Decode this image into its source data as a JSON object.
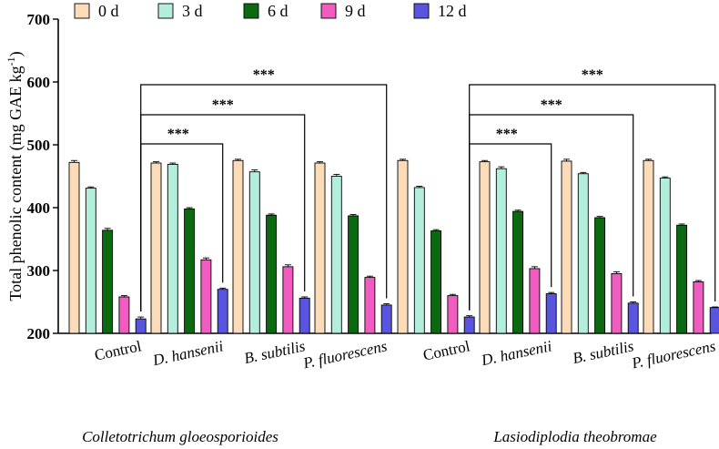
{
  "chart_data": {
    "type": "bar",
    "ylabel": "Total phenolic content (mg GAE kg",
    "ylabel_sup": "-1",
    "ylabel_close": ")",
    "ylim": [
      200,
      700
    ],
    "yticks": [
      200,
      300,
      400,
      500,
      600,
      700
    ],
    "series": [
      {
        "name": "0 d",
        "color": "#fcdcb8"
      },
      {
        "name": "3 d",
        "color": "#b3eedc"
      },
      {
        "name": "6 d",
        "color": "#0b6a10"
      },
      {
        "name": "9 d",
        "color": "#f05cbf"
      },
      {
        "name": "12 d",
        "color": "#5a55e0"
      }
    ],
    "groups": [
      {
        "name": "Colletotrichum gloeosporioides",
        "categories": [
          {
            "label": "Control",
            "italic": false,
            "values": [
              472,
              431,
              364,
              258,
              223
            ],
            "errors": [
              3,
              2,
              3,
              2,
              3
            ]
          },
          {
            "label": "D. hansenii",
            "italic": true,
            "values": [
              471,
              469,
              398,
              317,
              270
            ],
            "errors": [
              2,
              2,
              2,
              3,
              2
            ]
          },
          {
            "label": "B. subtilis",
            "italic": true,
            "values": [
              475,
              457,
              388,
              306,
              256
            ],
            "errors": [
              2,
              3,
              2,
              3,
              2
            ]
          },
          {
            "label": "P. fluorescens",
            "italic": true,
            "values": [
              471,
              450,
              387,
              289,
              245
            ],
            "errors": [
              2,
              3,
              2,
              2,
              2
            ]
          }
        ],
        "significance": [
          {
            "from": "Control",
            "to": "D. hansenii",
            "label": "***"
          },
          {
            "from": "Control",
            "to": "B. subtilis",
            "label": "***"
          },
          {
            "from": "Control",
            "to": "P. fluorescens",
            "label": "***"
          }
        ]
      },
      {
        "name": "Lasiodiplodia theobromae",
        "categories": [
          {
            "label": "Control",
            "italic": false,
            "values": [
              475,
              432,
              363,
              260,
              226
            ],
            "errors": [
              2,
              2,
              2,
              2,
              2
            ]
          },
          {
            "label": "D. hansenii",
            "italic": true,
            "values": [
              473,
              462,
              394,
              303,
              263
            ],
            "errors": [
              2,
              3,
              2,
              3,
              2
            ]
          },
          {
            "label": "B. subtilis",
            "italic": true,
            "values": [
              474,
              454,
              384,
              295,
              248
            ],
            "errors": [
              3,
              2,
              2,
              3,
              2
            ]
          },
          {
            "label": "P. fluorescens",
            "italic": true,
            "values": [
              475,
              447,
              372,
              282,
              241
            ],
            "errors": [
              2,
              2,
              2,
              2,
              1
            ]
          }
        ],
        "significance": [
          {
            "from": "Control",
            "to": "D. hansenii",
            "label": "***"
          },
          {
            "from": "Control",
            "to": "B. subtilis",
            "label": "***"
          },
          {
            "from": "Control",
            "to": "P. fluorescens",
            "label": "***"
          }
        ]
      }
    ]
  }
}
